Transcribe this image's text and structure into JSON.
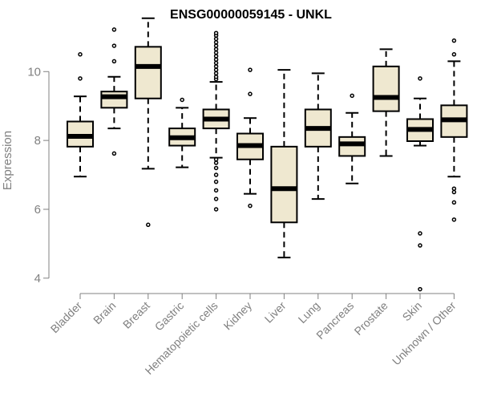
{
  "chart_data": {
    "type": "boxplot",
    "title": "ENSG00000059145 - UNKL",
    "xlabel": "",
    "ylabel": "Expression",
    "ylim": [
      3.6,
      11.8
    ],
    "yticks": [
      4,
      6,
      8,
      10
    ],
    "grid": false,
    "legend": "none",
    "box_fill": "#efe8d0",
    "box_stroke": "#000000",
    "axis_color": "#808080",
    "categories": [
      "Bladder",
      "Brain",
      "Breast",
      "Gastric",
      "Hematopoietic cells",
      "Kidney",
      "Liver",
      "Lung",
      "Pancreas",
      "Prostate",
      "Skin",
      "Unknown / Other"
    ],
    "boxes": [
      {
        "whisker_low": 6.95,
        "q1": 7.82,
        "median": 8.12,
        "q3": 8.55,
        "whisker_high": 9.28,
        "outliers": [
          9.8,
          10.5
        ]
      },
      {
        "whisker_low": 8.35,
        "q1": 8.95,
        "median": 9.27,
        "q3": 9.42,
        "whisker_high": 9.85,
        "outliers": [
          7.62,
          10.3,
          10.75,
          11.22
        ]
      },
      {
        "whisker_low": 7.18,
        "q1": 9.22,
        "median": 10.15,
        "q3": 10.72,
        "whisker_high": 11.55,
        "outliers": [
          5.55
        ]
      },
      {
        "whisker_low": 7.22,
        "q1": 7.85,
        "median": 8.08,
        "q3": 8.35,
        "whisker_high": 8.95,
        "outliers": [
          9.18
        ]
      },
      {
        "whisker_low": 7.5,
        "q1": 8.35,
        "median": 8.62,
        "q3": 8.9,
        "whisker_high": 9.7,
        "outliers": [
          6.0,
          6.3,
          6.55,
          6.8,
          7.0,
          7.2,
          7.35,
          7.45,
          9.78,
          9.85,
          9.95,
          10.05,
          10.15,
          10.25,
          10.35,
          10.45,
          10.55,
          10.65,
          10.75,
          10.85,
          10.95,
          11.05,
          11.12
        ]
      },
      {
        "whisker_low": 6.45,
        "q1": 7.45,
        "median": 7.85,
        "q3": 8.2,
        "whisker_high": 8.65,
        "outliers": [
          6.1,
          9.35,
          10.05
        ]
      },
      {
        "whisker_low": 4.6,
        "q1": 5.62,
        "median": 6.6,
        "q3": 7.82,
        "whisker_high": 10.05,
        "outliers": []
      },
      {
        "whisker_low": 6.3,
        "q1": 7.82,
        "median": 8.35,
        "q3": 8.9,
        "whisker_high": 9.95,
        "outliers": []
      },
      {
        "whisker_low": 6.75,
        "q1": 7.55,
        "median": 7.9,
        "q3": 8.1,
        "whisker_high": 8.8,
        "outliers": [
          9.3
        ]
      },
      {
        "whisker_low": 7.55,
        "q1": 8.85,
        "median": 9.25,
        "q3": 10.15,
        "whisker_high": 10.65,
        "outliers": []
      },
      {
        "whisker_low": 7.85,
        "q1": 7.98,
        "median": 8.32,
        "q3": 8.62,
        "whisker_high": 9.22,
        "outliers": [
          3.68,
          4.95,
          5.3,
          9.8
        ]
      },
      {
        "whisker_low": 6.95,
        "q1": 8.1,
        "median": 8.6,
        "q3": 9.02,
        "whisker_high": 10.3,
        "outliers": [
          5.7,
          6.2,
          6.5,
          6.6,
          10.5,
          10.9
        ]
      }
    ]
  }
}
